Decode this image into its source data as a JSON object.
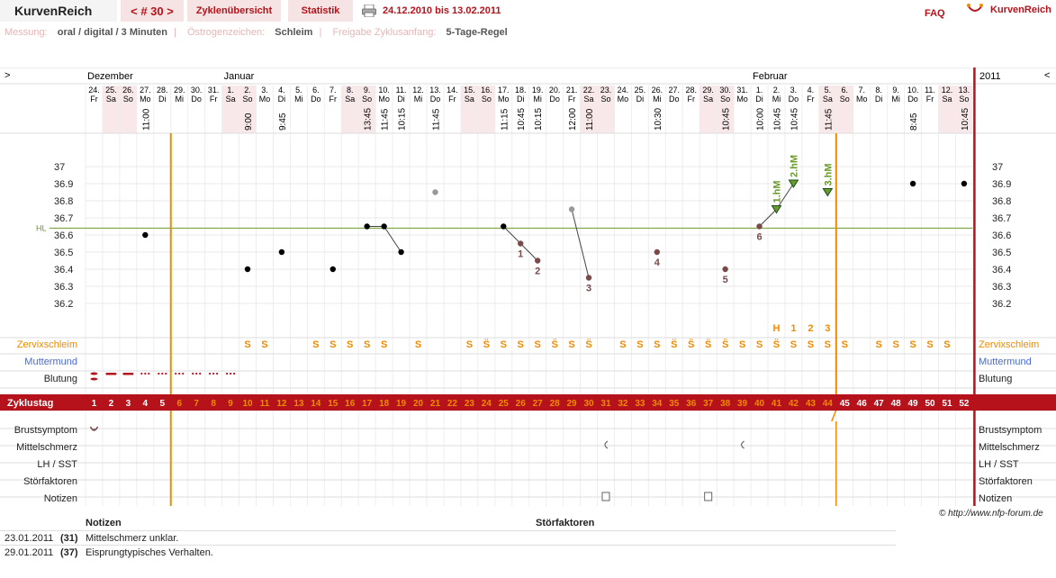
{
  "header": {
    "brand": "KurvenReich",
    "cycle_nav": "< # 30 >",
    "tabs": [
      "Zyklenübersicht",
      "Statistik"
    ],
    "date_range": "24.12.2010 bis 13.02.2011",
    "faq": "FAQ",
    "logo_text": "KurvenReich"
  },
  "info": {
    "measure_label": "Messung:",
    "measure_value": "oral / digital / 3 Minuten",
    "estro_label": "Östrogenzeichen:",
    "estro_value": "Schleim",
    "release_label": "Freigabe Zyklusanfang:",
    "release_value": "5-Tage-Regel"
  },
  "colors": {
    "accent": "#b5121b",
    "orange": "#f08a00",
    "hl": "#6a9a2a",
    "pink": "#f8e8ea",
    "blue": "#4a6ad0"
  },
  "chart": {
    "left_arrow": ">",
    "right_arrow": "<",
    "year": "2011",
    "months": [
      {
        "label": "Dezember",
        "col": 0
      },
      {
        "label": "Januar",
        "col": 8
      },
      {
        "label": "Februar",
        "col": 39
      }
    ],
    "days": [
      "24.",
      "25.",
      "26.",
      "27.",
      "28.",
      "29.",
      "30.",
      "31.",
      "1.",
      "2.",
      "3.",
      "4.",
      "5.",
      "6.",
      "7.",
      "8.",
      "9.",
      "10.",
      "11.",
      "12.",
      "13.",
      "14.",
      "15.",
      "16.",
      "17.",
      "18.",
      "19.",
      "20.",
      "21.",
      "22.",
      "23.",
      "24.",
      "25.",
      "26.",
      "27.",
      "28.",
      "29.",
      "30.",
      "31.",
      "1.",
      "2.",
      "3.",
      "4.",
      "5.",
      "6.",
      "7.",
      "8.",
      "9.",
      "10.",
      "11.",
      "12.",
      "13."
    ],
    "weekdays": [
      "Fr",
      "Sa",
      "So",
      "Mo",
      "Di",
      "Mi",
      "Do",
      "Fr",
      "Sa",
      "So",
      "Mo",
      "Di",
      "Mi",
      "Do",
      "Fr",
      "Sa",
      "So",
      "Mo",
      "Di",
      "Mi",
      "Do",
      "Fr",
      "Sa",
      "So",
      "Mo",
      "Di",
      "Mi",
      "Do",
      "Fr",
      "Sa",
      "So",
      "Mo",
      "Di",
      "Mi",
      "Do",
      "Fr",
      "Sa",
      "So",
      "Mo",
      "Di",
      "Mi",
      "Do",
      "Fr",
      "Sa",
      "So",
      "Mo",
      "Di",
      "Mi",
      "Do",
      "Fr",
      "Sa",
      "So"
    ],
    "times": {
      "3": "11:00",
      "9": "9:00",
      "11": "9:45",
      "16": "13:45",
      "17": "11:45",
      "18": "10:15",
      "20": "11:45",
      "24": "11:15",
      "25": "10:45",
      "26": "10:15",
      "28": "12:00",
      "29": "11:00",
      "33": "10:30",
      "37": "10:45",
      "39": "10:00",
      "40": "10:45",
      "41": "10:45",
      "43": "11:45",
      "48": "8:45",
      "51": "10:45"
    },
    "y_ticks": [
      "37",
      "36.9",
      "36.8",
      "36.7",
      "36.6",
      "36.5",
      "36.4",
      "36.3",
      "36.2"
    ],
    "hl_label": "HL",
    "temps": [
      {
        "col": 3,
        "v": 36.6,
        "c": "#000"
      },
      {
        "col": 9,
        "v": 36.4,
        "c": "#000"
      },
      {
        "col": 11,
        "v": 36.5,
        "c": "#000"
      },
      {
        "col": 14,
        "v": 36.4,
        "c": "#000"
      },
      {
        "col": 16,
        "v": 36.65,
        "c": "#000"
      },
      {
        "col": 17,
        "v": 36.65,
        "c": "#000"
      },
      {
        "col": 18,
        "v": 36.5,
        "c": "#000"
      },
      {
        "col": 20,
        "v": 36.85,
        "c": "#999"
      },
      {
        "col": 24,
        "v": 36.65,
        "c": "#000"
      },
      {
        "col": 25,
        "v": 36.55,
        "c": "#7a4a4a",
        "lab": "1"
      },
      {
        "col": 26,
        "v": 36.45,
        "c": "#7a4a4a",
        "lab": "2"
      },
      {
        "col": 28,
        "v": 36.75,
        "c": "#999"
      },
      {
        "col": 29,
        "v": 36.35,
        "c": "#7a4a4a",
        "lab": "3"
      },
      {
        "col": 33,
        "v": 36.5,
        "c": "#7a4a4a",
        "lab": "4"
      },
      {
        "col": 37,
        "v": 36.4,
        "c": "#7a4a4a",
        "lab": "5"
      },
      {
        "col": 39,
        "v": 36.65,
        "c": "#7a4a4a",
        "lab": "6"
      },
      {
        "col": 48,
        "v": 36.9,
        "c": "#000"
      },
      {
        "col": 51,
        "v": 36.9,
        "c": "#000"
      }
    ],
    "hm": [
      {
        "col": 40,
        "v": 36.75,
        "label": "1.hM"
      },
      {
        "col": 41,
        "v": 36.9,
        "label": "2.hM"
      },
      {
        "col": 43,
        "v": 36.85,
        "label": "3.hM"
      }
    ],
    "h123": [
      {
        "col": 40,
        "t": "H"
      },
      {
        "col": 41,
        "t": "1"
      },
      {
        "col": 42,
        "t": "2"
      },
      {
        "col": 43,
        "t": "3"
      }
    ],
    "row_labels": [
      "Zervixschleim",
      "Muttermund",
      "Blutung",
      "Zyklustag",
      "Brustsymptom",
      "Mittelschmerz",
      "LH / SST",
      "Störfaktoren",
      "Notizen"
    ],
    "mucus": {
      "9": "S",
      "10": "S",
      "13": "S",
      "14": "S",
      "15": "S",
      "16": "S",
      "17": "S",
      "19": "S",
      "22": "S",
      "23": "S̈",
      "24": "S",
      "25": "S",
      "26": "S",
      "27": "S̈",
      "28": "S",
      "29": "S̈",
      "31": "S",
      "32": "S",
      "33": "S",
      "34": "S̈",
      "35": "S̈",
      "36": "S̈",
      "37": "S̈",
      "38": "S",
      "39": "S",
      "40": "S̈",
      "41": "S",
      "42": "S",
      "43": "S",
      "44": "S",
      "46": "S",
      "47": "S",
      "48": "S",
      "49": "S",
      "50": "S"
    },
    "cycle_label": "Zyklustag",
    "cycle_days": [
      "1",
      "2",
      "3",
      "4",
      "5",
      "6",
      "7",
      "8",
      "9",
      "10",
      "11",
      "12",
      "13",
      "14",
      "15",
      "16",
      "17",
      "18",
      "19",
      "20",
      "21",
      "22",
      "23",
      "24",
      "25",
      "26",
      "27",
      "28",
      "29",
      "30",
      "31",
      "32",
      "33",
      "34",
      "35",
      "36",
      "37",
      "38",
      "39",
      "40",
      "41",
      "42",
      "43",
      "44",
      "45",
      "46",
      "47",
      "48",
      "49",
      "50",
      "51",
      "52"
    ]
  },
  "notes": {
    "col_notes": "Notizen",
    "col_disturb": "Störfaktoren",
    "rows": [
      {
        "date": "23.01.2011",
        "day": "(31)",
        "text": "Mittelschmerz unklar."
      },
      {
        "date": "29.01.2011",
        "day": "(37)",
        "text": "Eisprungtypisches Verhalten."
      }
    ]
  },
  "copyright": "© http://www.nfp-forum.de"
}
